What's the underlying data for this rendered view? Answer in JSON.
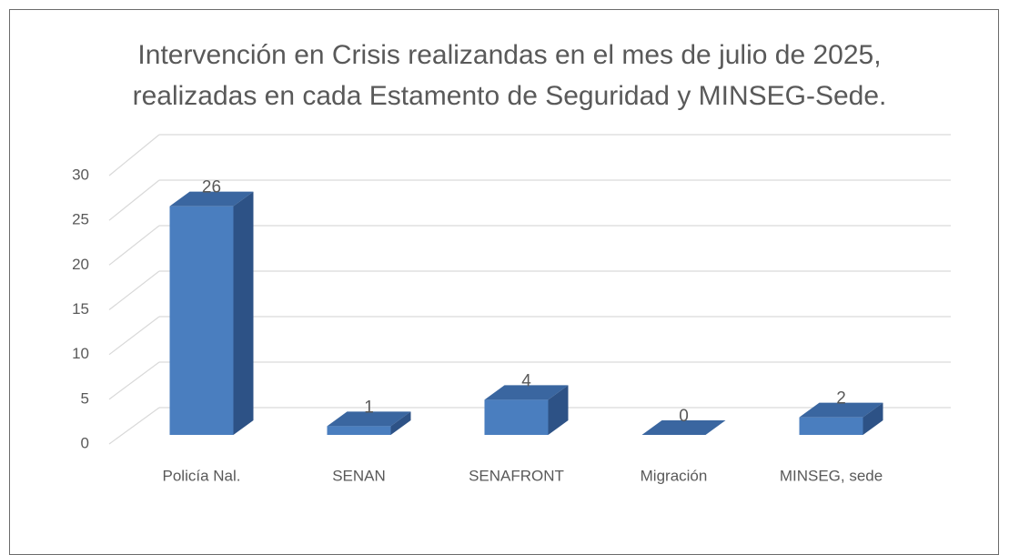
{
  "chart_data": {
    "type": "bar3d",
    "title": "Intervención en Crisis realizandas en el mes de julio de 2025, realizadas en cada Estamento de Seguridad y MINSEG-Sede.",
    "categories": [
      "Policía Nal.",
      "SENAN",
      "SENAFRONT",
      "Migración",
      "MINSEG, sede"
    ],
    "values": [
      26,
      1,
      4,
      0,
      2
    ],
    "color": "#4a7ebf",
    "ylim": [
      0,
      30
    ],
    "yticks": [
      0,
      5,
      10,
      15,
      20,
      25,
      30
    ],
    "grid": true
  }
}
